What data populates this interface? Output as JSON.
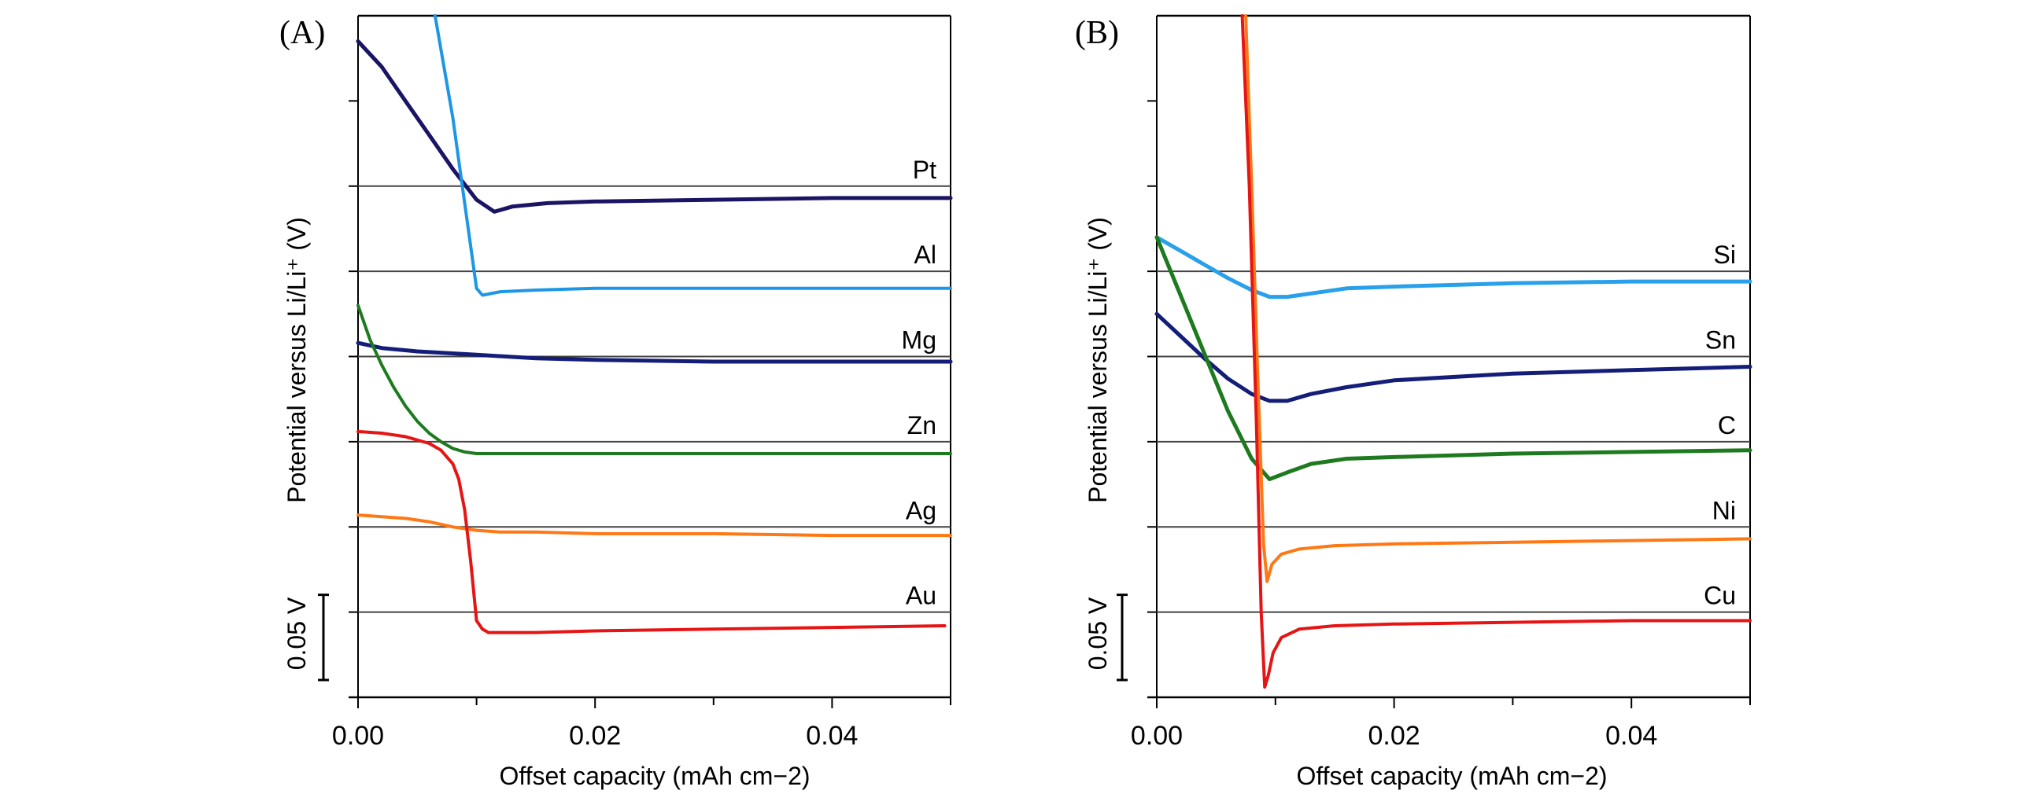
{
  "chart_data": [
    {
      "type": "line",
      "panel": "(A)",
      "title": "",
      "xlabel": "Offset capacity (mAh cm−2)",
      "ylabel": "Potential versus Li/Li⁺ (V)",
      "xlim": [
        0,
        0.05
      ],
      "ylim": [
        0,
        0.4
      ],
      "x_ticks": [
        "0.00",
        "0.02",
        "0.04"
      ],
      "x_tick_values": [
        0,
        0.02,
        0.04
      ],
      "x_minor_ticks": [
        0.01,
        0.03,
        0.05
      ],
      "y_ticks": [
        0.05,
        0.1,
        0.15,
        0.2,
        0.25,
        0.3,
        0.35
      ],
      "scale_bar_label": "0.05 V",
      "scale_bar_value": 0.05,
      "grid": "reference lines per metal (offset 0 V vs Li/Li⁺)",
      "series": [
        {
          "name": "Pt",
          "color": "#1a1464",
          "ref": 0.3,
          "x": [
            0,
            0.002,
            0.004,
            0.006,
            0.008,
            0.01,
            0.0115,
            0.013,
            0.016,
            0.02,
            0.03,
            0.04,
            0.05
          ],
          "y": [
            0.385,
            0.37,
            0.35,
            0.33,
            0.31,
            0.292,
            0.285,
            0.288,
            0.29,
            0.291,
            0.292,
            0.293,
            0.293
          ]
        },
        {
          "name": "Al",
          "color": "#1e96e6",
          "ref": 0.25,
          "x": [
            0.0065,
            0.008,
            0.009,
            0.01,
            0.0105,
            0.012,
            0.015,
            0.02,
            0.03,
            0.04,
            0.05
          ],
          "y": [
            0.4,
            0.34,
            0.29,
            0.24,
            0.236,
            0.238,
            0.239,
            0.24,
            0.24,
            0.24,
            0.24
          ]
        },
        {
          "name": "Mg",
          "color": "#141e78",
          "ref": 0.2,
          "x": [
            0,
            0.002,
            0.005,
            0.01,
            0.015,
            0.02,
            0.03,
            0.04,
            0.05
          ],
          "y": [
            0.208,
            0.205,
            0.203,
            0.201,
            0.199,
            0.198,
            0.197,
            0.197,
            0.197
          ]
        },
        {
          "name": "Zn",
          "color": "#1e7a1e",
          "ref": 0.15,
          "x": [
            0,
            0.001,
            0.002,
            0.003,
            0.004,
            0.005,
            0.006,
            0.007,
            0.008,
            0.009,
            0.01,
            0.015,
            0.02,
            0.03,
            0.04,
            0.05
          ],
          "y": [
            0.23,
            0.21,
            0.195,
            0.182,
            0.171,
            0.162,
            0.155,
            0.15,
            0.146,
            0.144,
            0.143,
            0.143,
            0.143,
            0.143,
            0.143,
            0.143
          ]
        },
        {
          "name": "Ag",
          "color": "#ff7814",
          "ref": 0.1,
          "x": [
            0,
            0.002,
            0.004,
            0.006,
            0.008,
            0.01,
            0.012,
            0.015,
            0.02,
            0.03,
            0.04,
            0.05
          ],
          "y": [
            0.107,
            0.106,
            0.105,
            0.103,
            0.1,
            0.098,
            0.097,
            0.097,
            0.096,
            0.096,
            0.095,
            0.095
          ]
        },
        {
          "name": "Au",
          "color": "#e61414",
          "ref": 0.05,
          "x": [
            0,
            0.002,
            0.004,
            0.006,
            0.007,
            0.008,
            0.0085,
            0.009,
            0.0095,
            0.01,
            0.0105,
            0.011,
            0.015,
            0.02,
            0.03,
            0.04,
            0.0495
          ],
          "y": [
            0.156,
            0.155,
            0.153,
            0.149,
            0.145,
            0.137,
            0.128,
            0.11,
            0.08,
            0.045,
            0.04,
            0.038,
            0.038,
            0.039,
            0.04,
            0.041,
            0.042
          ]
        }
      ]
    },
    {
      "type": "line",
      "panel": "(B)",
      "title": "",
      "xlabel": "Offset capacity (mAh cm−2)",
      "ylabel": "Potential versus Li/Li⁺ (V)",
      "xlim": [
        0,
        0.05
      ],
      "ylim": [
        0,
        0.4
      ],
      "x_ticks": [
        "0.00",
        "0.02",
        "0.04"
      ],
      "x_tick_values": [
        0,
        0.02,
        0.04
      ],
      "x_minor_ticks": [
        0.01,
        0.03,
        0.05
      ],
      "y_ticks": [
        0.05,
        0.1,
        0.15,
        0.2,
        0.25,
        0.3,
        0.35
      ],
      "scale_bar_label": "0.05 V",
      "scale_bar_value": 0.05,
      "grid": "reference lines per material (offset 0 V vs Li/Li⁺)",
      "series": [
        {
          "name": "Si",
          "color": "#28a0eb",
          "ref": 0.25,
          "x": [
            0,
            0.002,
            0.004,
            0.006,
            0.008,
            0.0095,
            0.011,
            0.013,
            0.016,
            0.02,
            0.03,
            0.04,
            0.05
          ],
          "y": [
            0.27,
            0.262,
            0.254,
            0.246,
            0.239,
            0.235,
            0.235,
            0.237,
            0.24,
            0.241,
            0.243,
            0.244,
            0.244
          ]
        },
        {
          "name": "Sn",
          "color": "#141e78",
          "ref": 0.2,
          "x": [
            0,
            0.002,
            0.004,
            0.006,
            0.008,
            0.0095,
            0.011,
            0.013,
            0.016,
            0.02,
            0.03,
            0.04,
            0.05
          ],
          "y": [
            0.225,
            0.212,
            0.199,
            0.187,
            0.178,
            0.174,
            0.174,
            0.178,
            0.182,
            0.186,
            0.19,
            0.192,
            0.194
          ]
        },
        {
          "name": "C",
          "color": "#1e7a1e",
          "ref": 0.15,
          "x": [
            0,
            0.002,
            0.004,
            0.006,
            0.008,
            0.0095,
            0.011,
            0.013,
            0.016,
            0.02,
            0.03,
            0.04,
            0.05
          ],
          "y": [
            0.27,
            0.236,
            0.202,
            0.168,
            0.14,
            0.128,
            0.132,
            0.137,
            0.14,
            0.141,
            0.143,
            0.144,
            0.145
          ]
        },
        {
          "name": "Ni",
          "color": "#ff7814",
          "ref": 0.1,
          "x": [
            0.0075,
            0.008,
            0.0085,
            0.009,
            0.0093,
            0.0097,
            0.0105,
            0.012,
            0.015,
            0.02,
            0.03,
            0.04,
            0.05
          ],
          "y": [
            0.4,
            0.3,
            0.19,
            0.09,
            0.068,
            0.078,
            0.084,
            0.087,
            0.089,
            0.09,
            0.091,
            0.092,
            0.093
          ]
        },
        {
          "name": "Cu",
          "color": "#e61414",
          "ref": 0.05,
          "x": [
            0.0072,
            0.0078,
            0.0084,
            0.0088,
            0.0091,
            0.0094,
            0.0098,
            0.0105,
            0.012,
            0.015,
            0.02,
            0.03,
            0.04,
            0.05
          ],
          "y": [
            0.4,
            0.3,
            0.16,
            0.05,
            0.006,
            0.013,
            0.026,
            0.035,
            0.04,
            0.042,
            0.043,
            0.044,
            0.045,
            0.045
          ]
        }
      ]
    }
  ]
}
